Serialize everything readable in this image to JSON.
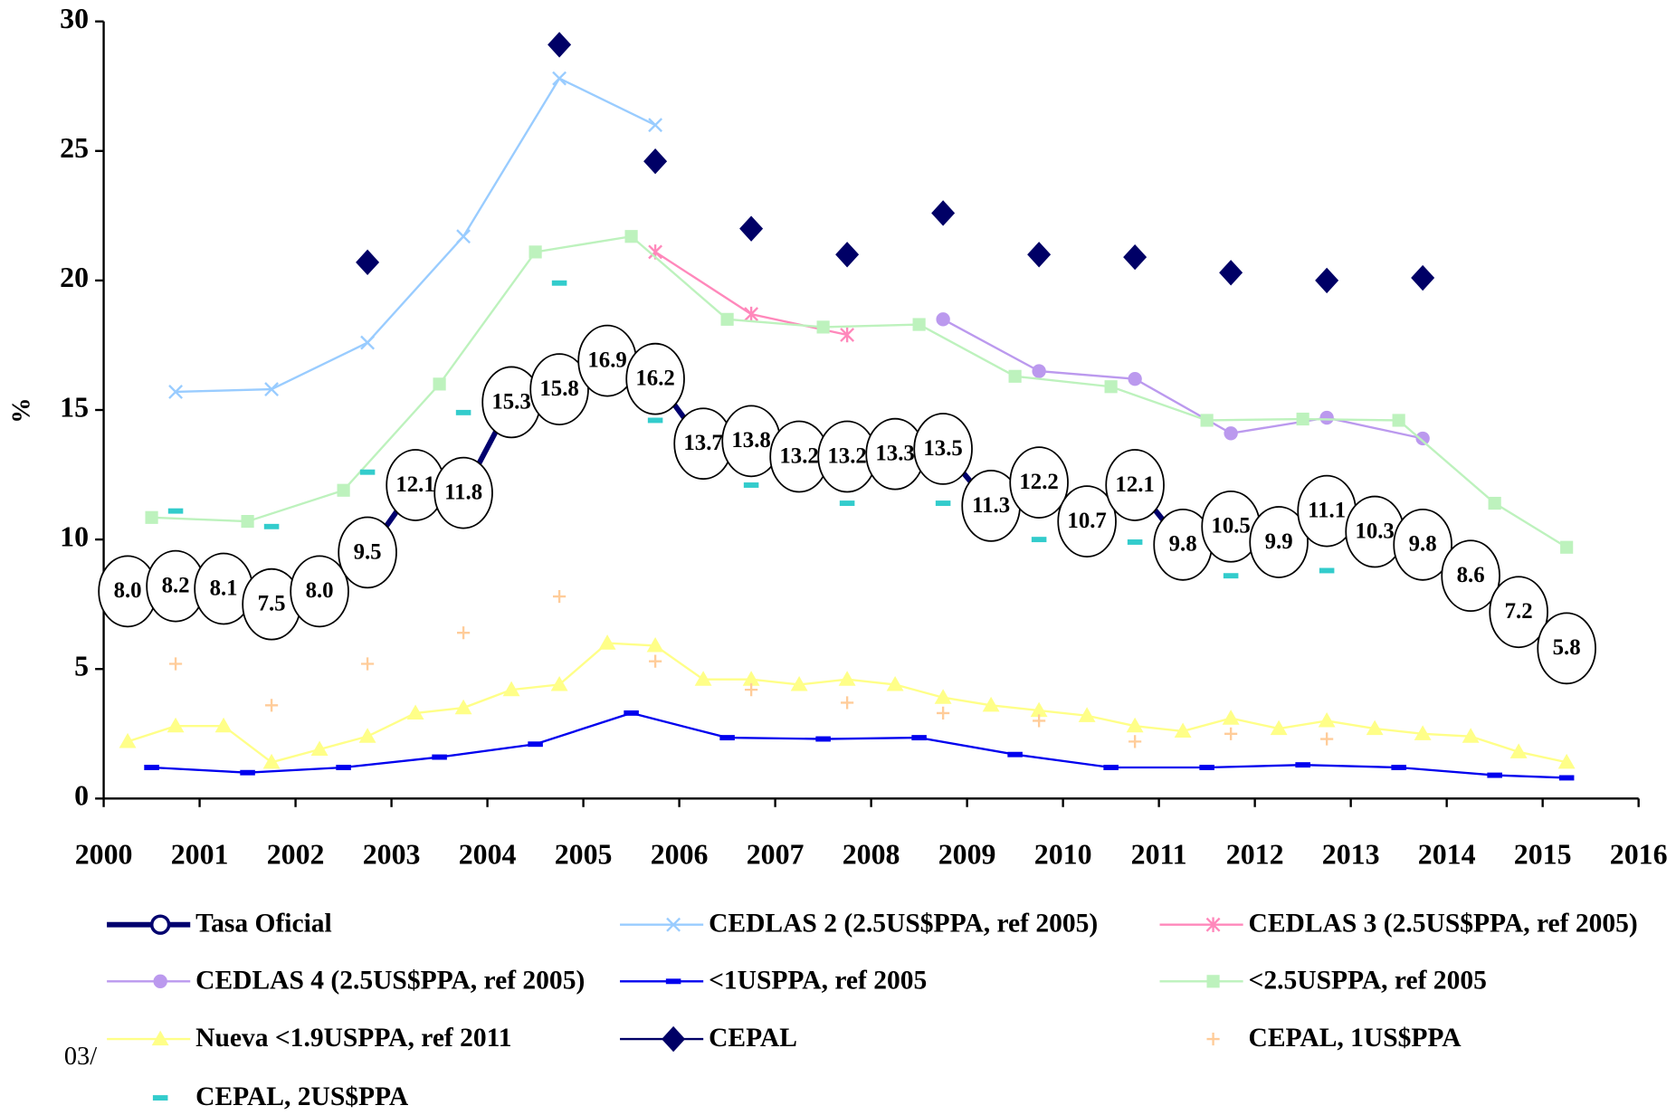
{
  "chart_data": {
    "type": "line",
    "y_label": "%",
    "footer": "03/",
    "xlim": [
      2000,
      2016
    ],
    "xticks": [
      2000,
      2001,
      2002,
      2003,
      2004,
      2005,
      2006,
      2007,
      2008,
      2009,
      2010,
      2011,
      2012,
      2013,
      2014,
      2015,
      2016
    ],
    "ylim": [
      0,
      30
    ],
    "yticks": [
      0,
      5,
      10,
      15,
      20,
      25,
      30
    ],
    "series": [
      {
        "name": "Tasa Oficial",
        "color": "#00006e",
        "marker": "bubble",
        "line": true,
        "x": [
          2000.25,
          2000.75,
          2001.25,
          2001.75,
          2002.25,
          2002.75,
          2003.25,
          2003.75,
          2004.25,
          2004.75,
          2005.25,
          2005.75,
          2006.25,
          2006.75,
          2007.25,
          2007.75,
          2008.25,
          2008.75,
          2009.25,
          2009.75,
          2010.25,
          2010.75,
          2011.25,
          2011.75,
          2012.25,
          2012.75,
          2013.25,
          2013.75,
          2014.25,
          2014.75,
          2015.25
        ],
        "values": [
          8.0,
          8.2,
          8.1,
          7.5,
          8.0,
          9.5,
          12.1,
          11.8,
          15.3,
          15.8,
          16.9,
          16.2,
          13.7,
          13.8,
          13.2,
          13.2,
          13.3,
          13.5,
          11.3,
          12.2,
          10.7,
          12.1,
          9.8,
          10.5,
          9.9,
          11.1,
          10.3,
          9.8,
          8.6,
          7.2,
          5.8
        ],
        "value_labels": [
          "8.0",
          "8.2",
          "8.1",
          "7.5",
          "8.0",
          "9.5",
          "12.1",
          "11.8",
          "15.3",
          "15.8",
          "16.9",
          "16.2",
          "13.7",
          "13.8",
          "13.2",
          "13.2",
          "13.3",
          "13.5",
          "11.3",
          "12.2",
          "10.7",
          "12.1",
          "9.8",
          "10.5",
          "9.9",
          "11.1",
          "10.3",
          "9.8",
          "8.6",
          "7.2",
          "5.8"
        ]
      },
      {
        "name": "CEDLAS 2 (2.5US$PPA, ref 2005)",
        "color": "#99ccff",
        "marker": "x",
        "line": true,
        "x": [
          2000.75,
          2001.75,
          2002.75,
          2003.75,
          2004.75,
          2005.75
        ],
        "values": [
          15.7,
          15.8,
          17.6,
          21.7,
          27.8,
          26.0
        ]
      },
      {
        "name": "CEDLAS 3 (2.5US$PPA, ref 2005)",
        "color": "#ff88bb",
        "marker": "asterisk",
        "line": true,
        "x": [
          2005.75,
          2006.75,
          2007.75
        ],
        "values": [
          21.1,
          18.7,
          17.9
        ]
      },
      {
        "name": "CEDLAS 4 (2.5US$PPA, ref 2005)",
        "color": "#bb99ee",
        "marker": "circle",
        "line": true,
        "x": [
          2008.75,
          2009.75,
          2010.75,
          2011.75,
          2012.75,
          2013.75
        ],
        "values": [
          18.5,
          16.5,
          16.2,
          14.1,
          14.7,
          13.9
        ]
      },
      {
        "name": "<1USPPA, ref 2005",
        "color": "#0000ee",
        "marker": "dash",
        "line": true,
        "x": [
          2000.5,
          2001.5,
          2002.5,
          2003.5,
          2004.5,
          2005.5,
          2006.5,
          2007.5,
          2008.5,
          2009.5,
          2010.5,
          2011.5,
          2012.5,
          2013.5,
          2014.5,
          2015.25
        ],
        "values": [
          1.2,
          1.0,
          1.2,
          1.6,
          2.1,
          3.3,
          2.35,
          2.3,
          2.35,
          1.7,
          1.2,
          1.2,
          1.3,
          1.2,
          0.9,
          0.8
        ]
      },
      {
        "name": "<2.5USPPA, ref 2005",
        "color": "#bdf2bd",
        "marker": "square",
        "line": true,
        "x": [
          2000.5,
          2001.5,
          2002.5,
          2003.5,
          2004.5,
          2005.5,
          2006.5,
          2007.5,
          2008.5,
          2009.5,
          2010.5,
          2011.5,
          2012.5,
          2013.5,
          2014.5,
          2015.25
        ],
        "values": [
          10.85,
          10.7,
          11.9,
          16.0,
          21.1,
          21.7,
          18.5,
          18.2,
          18.3,
          16.3,
          15.9,
          14.6,
          14.65,
          14.6,
          11.4,
          9.7
        ]
      },
      {
        "name": "Nueva <1.9USPPA, ref 2011",
        "color": "#ffff88",
        "marker": "triangle",
        "line": true,
        "x": [
          2000.25,
          2000.75,
          2001.25,
          2001.75,
          2002.25,
          2002.75,
          2003.25,
          2003.75,
          2004.25,
          2004.75,
          2005.25,
          2005.75,
          2006.25,
          2006.75,
          2007.25,
          2007.75,
          2008.25,
          2008.75,
          2009.25,
          2009.75,
          2010.25,
          2010.75,
          2011.25,
          2011.75,
          2012.25,
          2012.75,
          2013.25,
          2013.75,
          2014.25,
          2014.75,
          2015.25
        ],
        "values": [
          2.2,
          2.8,
          2.8,
          1.4,
          1.9,
          2.4,
          3.3,
          3.5,
          4.2,
          4.4,
          6.0,
          5.9,
          4.6,
          4.6,
          4.4,
          4.6,
          4.4,
          3.9,
          3.6,
          3.4,
          3.2,
          2.8,
          2.6,
          3.1,
          2.7,
          3.0,
          2.7,
          2.5,
          2.4,
          1.8,
          1.4
        ]
      },
      {
        "name": "CEPAL",
        "color": "#000066",
        "marker": "diamond",
        "line": false,
        "x": [
          2002.75,
          2004.75,
          2005.75,
          2006.75,
          2007.75,
          2008.75,
          2009.75,
          2010.75,
          2011.75,
          2012.75,
          2013.75
        ],
        "values": [
          20.7,
          29.1,
          24.6,
          22.0,
          21.0,
          22.6,
          21.0,
          20.9,
          20.3,
          20.0,
          20.1
        ]
      },
      {
        "name": "CEPAL, 1US$PPA",
        "color": "#ffcc99",
        "marker": "plus",
        "line": false,
        "x": [
          2000.75,
          2001.75,
          2002.75,
          2003.75,
          2004.75,
          2005.75,
          2006.75,
          2007.75,
          2008.75,
          2009.75,
          2010.75,
          2011.75,
          2012.75
        ],
        "values": [
          5.2,
          3.6,
          5.2,
          6.4,
          7.8,
          5.3,
          4.2,
          3.7,
          3.3,
          3.0,
          2.2,
          2.5,
          2.3
        ]
      },
      {
        "name": "CEPAL, 2US$PPA",
        "color": "#33cccc",
        "marker": "dash",
        "line": false,
        "x": [
          2000.75,
          2001.75,
          2002.75,
          2003.75,
          2004.75,
          2005.75,
          2006.75,
          2007.75,
          2008.75,
          2009.75,
          2010.75,
          2011.75,
          2012.75
        ],
        "values": [
          11.1,
          10.5,
          12.6,
          14.9,
          19.9,
          14.6,
          12.1,
          11.4,
          11.4,
          10.0,
          9.9,
          8.6,
          8.8
        ]
      }
    ]
  }
}
